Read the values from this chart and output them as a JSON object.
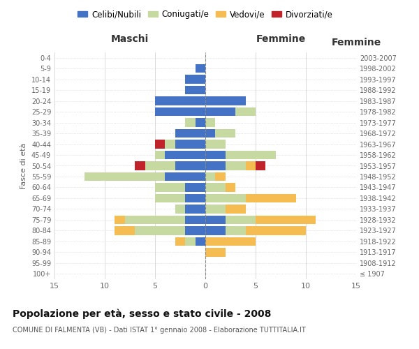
{
  "age_groups": [
    "100+",
    "95-99",
    "90-94",
    "85-89",
    "80-84",
    "75-79",
    "70-74",
    "65-69",
    "60-64",
    "55-59",
    "50-54",
    "45-49",
    "40-44",
    "35-39",
    "30-34",
    "25-29",
    "20-24",
    "15-19",
    "10-14",
    "5-9",
    "0-4"
  ],
  "birth_years": [
    "≤ 1907",
    "1908-1912",
    "1913-1917",
    "1918-1922",
    "1923-1927",
    "1928-1932",
    "1933-1937",
    "1938-1942",
    "1943-1947",
    "1948-1952",
    "1953-1957",
    "1958-1962",
    "1963-1967",
    "1968-1972",
    "1973-1977",
    "1978-1982",
    "1983-1987",
    "1988-1992",
    "1993-1997",
    "1998-2002",
    "2003-2007"
  ],
  "males": {
    "celibi": [
      0,
      0,
      0,
      1,
      2,
      2,
      2,
      2,
      2,
      4,
      3,
      4,
      3,
      3,
      1,
      5,
      5,
      2,
      2,
      1,
      0
    ],
    "coniugati": [
      0,
      0,
      0,
      1,
      5,
      6,
      1,
      3,
      3,
      8,
      3,
      1,
      1,
      0,
      1,
      0,
      0,
      0,
      0,
      0,
      0
    ],
    "vedovi": [
      0,
      0,
      0,
      1,
      2,
      1,
      0,
      0,
      0,
      0,
      0,
      0,
      0,
      0,
      0,
      0,
      0,
      0,
      0,
      0,
      0
    ],
    "divorziati": [
      0,
      0,
      0,
      0,
      0,
      0,
      0,
      0,
      0,
      0,
      1,
      0,
      1,
      0,
      0,
      0,
      0,
      0,
      0,
      0,
      0
    ]
  },
  "females": {
    "nubili": [
      0,
      0,
      0,
      0,
      2,
      2,
      0,
      0,
      0,
      0,
      2,
      2,
      0,
      1,
      0,
      3,
      4,
      0,
      0,
      0,
      0
    ],
    "coniugate": [
      0,
      0,
      0,
      0,
      2,
      3,
      2,
      4,
      2,
      1,
      2,
      5,
      2,
      2,
      1,
      2,
      0,
      0,
      0,
      0,
      0
    ],
    "vedove": [
      0,
      0,
      2,
      5,
      6,
      6,
      2,
      5,
      1,
      1,
      1,
      0,
      0,
      0,
      0,
      0,
      0,
      0,
      0,
      0,
      0
    ],
    "divorziate": [
      0,
      0,
      0,
      0,
      0,
      0,
      0,
      0,
      0,
      0,
      1,
      0,
      0,
      0,
      0,
      0,
      0,
      0,
      0,
      0,
      0
    ]
  },
  "colors": {
    "celibi_nubili": "#4472C4",
    "coniugati": "#C5D9A0",
    "vedovi": "#F5BC52",
    "divorziati": "#C0232A"
  },
  "title": "Popolazione per età, sesso e stato civile - 2008",
  "subtitle": "COMUNE DI FALMENTA (VB) - Dati ISTAT 1° gennaio 2008 - Elaborazione TUTTITALIA.IT",
  "xlabel_left": "Maschi",
  "xlabel_right": "Femmine",
  "ylabel_left": "Fasce di età",
  "xlim": 15,
  "bg_color": "#ffffff",
  "grid_color": "#cccccc",
  "bar_height": 0.8
}
